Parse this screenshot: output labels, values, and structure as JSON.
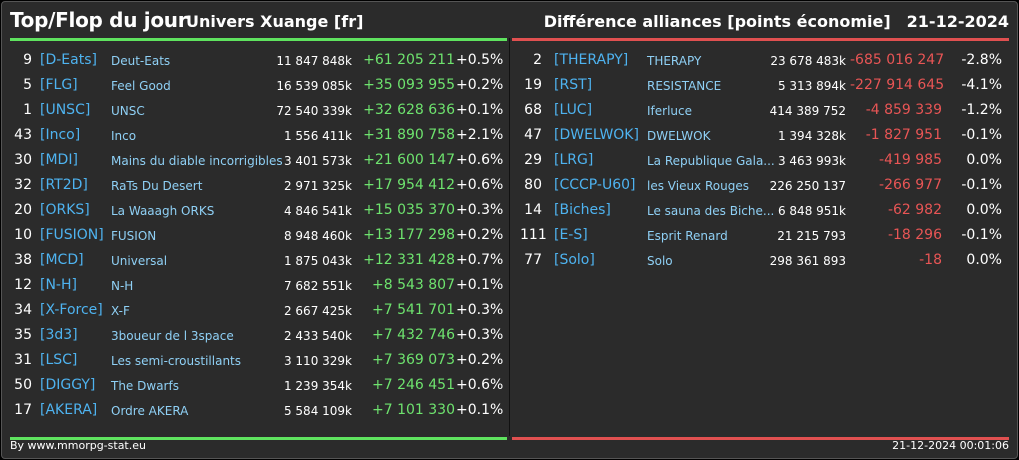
{
  "header": {
    "title": "Top/Flop du jour",
    "universe": "Univers Xuange [fr]",
    "subject": "Différence alliances [points économie]",
    "date": "21-12-2024"
  },
  "colors": {
    "top": "#5fe35f",
    "flop": "#e05050",
    "tag": "#4eb3f0",
    "name": "#8fd0f5",
    "background": "#2b2b2b"
  },
  "top": [
    {
      "rank": "9",
      "tag": "[D-Eats]",
      "name": "Deut-Eats",
      "points": "11 847 848k",
      "diff": "+61 205 211",
      "pct": "+0.5%"
    },
    {
      "rank": "5",
      "tag": "[FLG]",
      "name": "Feel Good",
      "points": "16 539 085k",
      "diff": "+35 093 955",
      "pct": "+0.2%"
    },
    {
      "rank": "1",
      "tag": "[UNSC]",
      "name": "UNSC",
      "points": "72 540 339k",
      "diff": "+32 628 636",
      "pct": "+0.1%"
    },
    {
      "rank": "43",
      "tag": "[Inco]",
      "name": "Inco",
      "points": "1 556 411k",
      "diff": "+31 890 758",
      "pct": "+2.1%"
    },
    {
      "rank": "30",
      "tag": "[MDI]",
      "name": "Mains du diable incorrigibles",
      "points": "3 401 573k",
      "diff": "+21 600 147",
      "pct": "+0.6%"
    },
    {
      "rank": "32",
      "tag": "[RT2D]",
      "name": "RaTs Du Desert",
      "points": "2 971 325k",
      "diff": "+17 954 412",
      "pct": "+0.6%"
    },
    {
      "rank": "20",
      "tag": "[ORKS]",
      "name": "La Waaagh ORKS",
      "points": "4 846 541k",
      "diff": "+15 035 370",
      "pct": "+0.3%"
    },
    {
      "rank": "10",
      "tag": "[FUSION]",
      "name": "FUSION",
      "points": "8 948 460k",
      "diff": "+13 177 298",
      "pct": "+0.2%"
    },
    {
      "rank": "38",
      "tag": "[MCD]",
      "name": "Universal",
      "points": "1 875 043k",
      "diff": "+12 331 428",
      "pct": "+0.7%"
    },
    {
      "rank": "12",
      "tag": "[N-H]",
      "name": "N-H",
      "points": "7 682 551k",
      "diff": "+8 543 807",
      "pct": "+0.1%"
    },
    {
      "rank": "34",
      "tag": "[X-Force]",
      "name": "X-F",
      "points": "2 667 425k",
      "diff": "+7 541 701",
      "pct": "+0.3%"
    },
    {
      "rank": "35",
      "tag": "[3d3]",
      "name": "3boueur de l 3space",
      "points": "2 433 540k",
      "diff": "+7 432 746",
      "pct": "+0.3%"
    },
    {
      "rank": "31",
      "tag": "[LSC]",
      "name": "Les semi-croustillants",
      "points": "3 110 329k",
      "diff": "+7 369 073",
      "pct": "+0.2%"
    },
    {
      "rank": "50",
      "tag": "[DIGGY]",
      "name": "The Dwarfs",
      "points": "1 239 354k",
      "diff": "+7 246 451",
      "pct": "+0.6%"
    },
    {
      "rank": "17",
      "tag": "[AKERA]",
      "name": "Ordre AKERA",
      "points": "5 584 109k",
      "diff": "+7 101 330",
      "pct": "+0.1%"
    }
  ],
  "flop": [
    {
      "rank": "2",
      "tag": "[THERAPY]",
      "name": "THERAPY",
      "points": "23 678 483k",
      "diff": "-685 016 247",
      "pct": "-2.8%"
    },
    {
      "rank": "19",
      "tag": "[RST]",
      "name": "RESISTANCE",
      "points": "5 313 894k",
      "diff": "-227 914 645",
      "pct": "-4.1%"
    },
    {
      "rank": "68",
      "tag": "[LUC]",
      "name": "Iferluce",
      "points": "414 389 752",
      "diff": "-4 859 339",
      "pct": "-1.2%"
    },
    {
      "rank": "47",
      "tag": "[DWELWOK]",
      "name": "DWELWOK",
      "points": "1 394 328k",
      "diff": "-1 827 951",
      "pct": "-0.1%"
    },
    {
      "rank": "29",
      "tag": "[LRG]",
      "name": "La Republique Gala...",
      "points": "3 463 993k",
      "diff": "-419 985",
      "pct": "0.0%"
    },
    {
      "rank": "80",
      "tag": "[CCCP-U60]",
      "name": "les Vieux Rouges",
      "points": "226 250 137",
      "diff": "-266 977",
      "pct": "-0.1%"
    },
    {
      "rank": "14",
      "tag": "[Biches]",
      "name": "Le sauna des Biche...",
      "points": "6 848 951k",
      "diff": "-62 982",
      "pct": "0.0%"
    },
    {
      "rank": "111",
      "tag": "[E-S]",
      "name": "Esprit Renard",
      "points": "21 215 793",
      "diff": "-18 296",
      "pct": "-0.1%"
    },
    {
      "rank": "77",
      "tag": "[Solo]",
      "name": "Solo",
      "points": "298 361 893",
      "diff": "-18",
      "pct": "0.0%"
    }
  ],
  "footer": {
    "credit": "By www.mmorpg-stat.eu",
    "timestamp": "21-12-2024 00:01:06"
  }
}
